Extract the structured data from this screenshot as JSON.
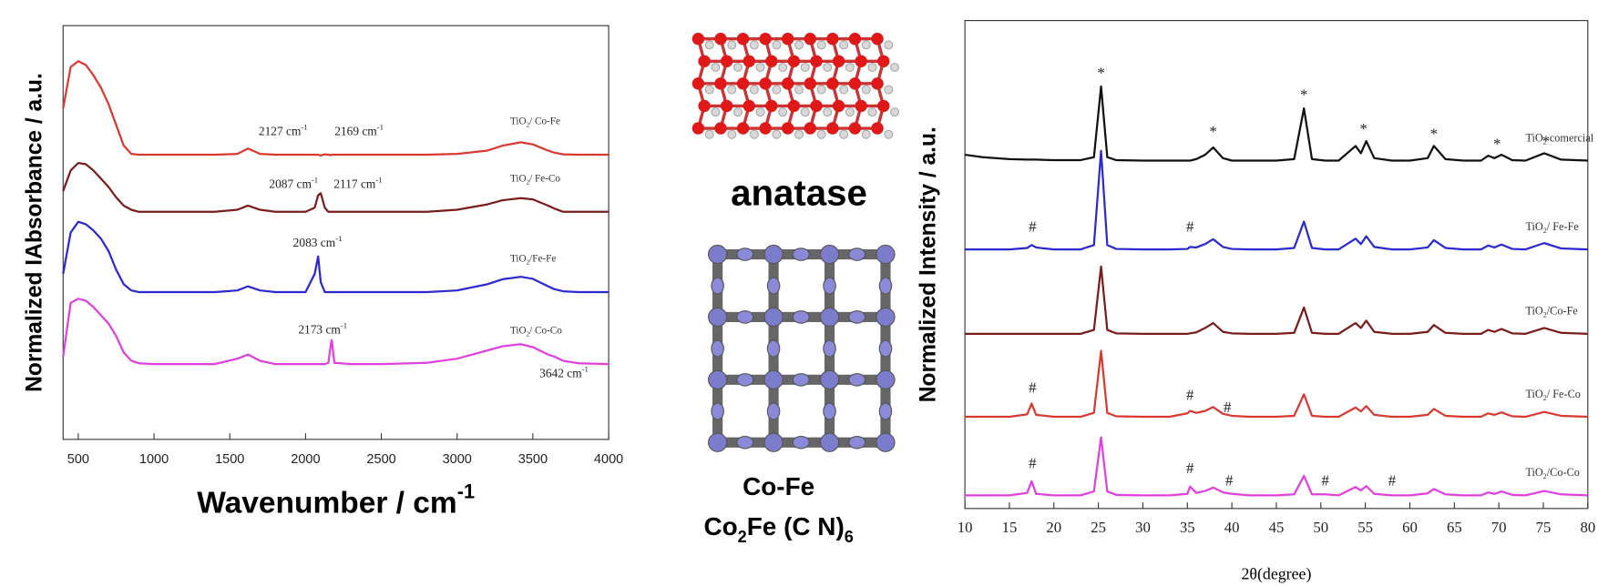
{
  "chart_data": [
    {
      "type": "line",
      "ylabel": "Normalized IAbsorbance / a.u.",
      "xlabel": "Wavenumber / cm-1",
      "xlim": [
        400,
        4000
      ],
      "xticks": [
        500,
        1000,
        1500,
        2000,
        2500,
        3000,
        3500,
        4000
      ],
      "ylim": [
        0,
        100
      ],
      "x": [
        400,
        450,
        500,
        550,
        600,
        650,
        700,
        750,
        800,
        850,
        900,
        1000,
        1200,
        1400,
        1550,
        1620,
        1700,
        1800,
        2000,
        2060,
        2083,
        2100,
        2127,
        2150,
        2169,
        2173,
        2190,
        2300,
        2500,
        2800,
        3000,
        3200,
        3300,
        3420,
        3500,
        3600,
        3642,
        3700,
        3800,
        4000
      ],
      "series": [
        {
          "name": "TiO2/ Co-Fe",
          "color": "#d93a30",
          "values": [
            80,
            90,
            91.4,
            90.5,
            88,
            85,
            81,
            76,
            71,
            69,
            68.8,
            68.8,
            68.8,
            68.8,
            69,
            70.3,
            69,
            68.8,
            68.8,
            68.8,
            68.8,
            68.6,
            68.9,
            68.8,
            68.7,
            68.8,
            68.8,
            68.8,
            68.8,
            68.8,
            69,
            69.8,
            71,
            71.8,
            71.3,
            69.8,
            69.3,
            68.9,
            68.8,
            68.8
          ]
        },
        {
          "name": "TiO2/ Fe-Co",
          "color": "#7a1c1c",
          "values": [
            60,
            65,
            66.8,
            66.5,
            65,
            63,
            61,
            58.5,
            56.5,
            55.5,
            55,
            55,
            55,
            55,
            55.5,
            56.5,
            55.5,
            55,
            55,
            56,
            59,
            59.5,
            56,
            55,
            55,
            55,
            55,
            55,
            55,
            55,
            55.5,
            56.8,
            57.8,
            58.3,
            58,
            56.5,
            55.8,
            55,
            55,
            55
          ]
        },
        {
          "name": "TiO2/Fe-Fe",
          "color": "#2a2ad0",
          "values": [
            40,
            50,
            52.6,
            52,
            50.5,
            48.5,
            45.5,
            41,
            37.5,
            36,
            35.6,
            35.6,
            35.6,
            35.6,
            36,
            37,
            36,
            35.6,
            35.6,
            40,
            44.2,
            38,
            35.6,
            35.6,
            35.6,
            35.6,
            35.6,
            35.6,
            35.6,
            35.6,
            36,
            37.5,
            38.7,
            39.3,
            38.8,
            37,
            36.3,
            35.8,
            35.6,
            35.6
          ]
        },
        {
          "name": "TiO2/ Co-Co",
          "color": "#e040e0",
          "values": [
            20,
            33,
            34,
            33.5,
            32,
            30,
            28,
            25,
            21,
            19,
            18.4,
            18.2,
            18.2,
            18.2,
            19.5,
            20.5,
            19,
            18.2,
            18.2,
            18.2,
            18.2,
            18.2,
            18.2,
            18.5,
            23.5,
            24,
            18.5,
            18.2,
            18.2,
            18.5,
            19.5,
            21.5,
            22.5,
            23,
            22.3,
            20.5,
            20,
            19,
            18.4,
            18.2
          ]
        }
      ],
      "annotations": [
        {
          "text": "2127 cm-1",
          "x": 1852,
          "y": 74.2
        },
        {
          "text": "2169 cm-1",
          "x": 2353,
          "y": 74.2
        },
        {
          "text": "2087 cm-1",
          "x": 1921,
          "y": 61.4
        },
        {
          "text": "2117 cm-1",
          "x": 2346,
          "y": 61.4
        },
        {
          "text": "2083 cm-1",
          "x": 2079,
          "y": 47.2
        },
        {
          "text": "2173 cm-1",
          "x": 2113,
          "y": 26.3
        },
        {
          "text": "3642 cm-1",
          "x": 3705,
          "y": 15.7
        }
      ]
    },
    {
      "type": "line",
      "ylabel": "Normalized Intensity / a.u.",
      "xlabel": "2θ(degree)",
      "xlim": [
        10,
        80
      ],
      "xticks": [
        10,
        15,
        20,
        25,
        30,
        35,
        40,
        45,
        50,
        55,
        60,
        65,
        70,
        75,
        80
      ],
      "ylim": [
        0,
        100
      ],
      "x": [
        10,
        12,
        15,
        17,
        17.5,
        18,
        20,
        23,
        24.5,
        25.3,
        26,
        27,
        30,
        33,
        35,
        35.3,
        36,
        37,
        37.9,
        39,
        40,
        42,
        45,
        47,
        48.1,
        49,
        50.5,
        52,
        53.9,
        54.5,
        55.1,
        56,
        58,
        60,
        62,
        62.7,
        64,
        66,
        68,
        68.8,
        69.5,
        70.3,
        71.5,
        73,
        75.1,
        77,
        80
      ],
      "series": [
        {
          "name": "TiO2 comercial",
          "color": "#111111",
          "values": [
            72.5,
            72,
            71.6,
            71.5,
            71.5,
            71.5,
            71.4,
            71.4,
            72,
            86.5,
            72,
            71.4,
            71.3,
            71.3,
            71.3,
            71.3,
            71.6,
            72.5,
            74,
            71.8,
            71.3,
            71.3,
            71.3,
            71.6,
            82,
            71.6,
            71.3,
            71.3,
            74.3,
            72.8,
            75.3,
            71.8,
            71.3,
            71.3,
            71.8,
            74.3,
            71.6,
            71.3,
            71.3,
            72.3,
            71.8,
            72.5,
            71.4,
            71.3,
            72.8,
            71.5,
            71.3
          ]
        },
        {
          "name": "TiO2/ Fe-Fe",
          "color": "#2a2ad0",
          "values": [
            53.1,
            53.1,
            53.1,
            53.4,
            54,
            53.5,
            53.1,
            53.1,
            54,
            73.3,
            54,
            53.2,
            53.1,
            53.1,
            53.2,
            53.6,
            53.5,
            54.2,
            55.2,
            53.6,
            53.2,
            53.1,
            53.1,
            53.4,
            58.8,
            53.4,
            53.1,
            53.1,
            55.3,
            54.2,
            55.8,
            53.6,
            53.1,
            53.1,
            53.5,
            55,
            53.4,
            53.1,
            53.1,
            53.9,
            53.5,
            54.1,
            53.2,
            53.1,
            54.4,
            53.3,
            53.1
          ]
        },
        {
          "name": "TiO2/Co-Fe",
          "color": "#7a1c1c",
          "values": [
            35.8,
            35.8,
            35.8,
            35.8,
            35.8,
            35.8,
            35.8,
            35.8,
            36.6,
            49.6,
            36.6,
            35.9,
            35.8,
            35.8,
            35.8,
            35.9,
            36.1,
            37,
            38,
            36.2,
            35.9,
            35.8,
            35.8,
            36,
            41.2,
            36,
            35.8,
            35.8,
            38,
            37,
            38.5,
            36.2,
            35.8,
            35.8,
            36.2,
            37.6,
            36,
            35.8,
            35.8,
            36.6,
            36.2,
            36.8,
            35.9,
            35.8,
            37,
            36,
            35.8
          ]
        },
        {
          "name": "TiO2/ Fe-Co",
          "color": "#d93a30",
          "values": [
            18.8,
            18.8,
            18.8,
            19.3,
            21.5,
            19.2,
            18.8,
            18.8,
            19.6,
            32.3,
            19.6,
            18.9,
            18.8,
            18.8,
            19.5,
            20,
            19.6,
            20,
            20.8,
            19.4,
            19,
            18.8,
            18.8,
            19,
            23.4,
            19,
            18.8,
            18.8,
            20.7,
            19.9,
            21,
            19.2,
            18.8,
            18.8,
            19.2,
            20.4,
            19,
            18.8,
            18.8,
            19.5,
            19.2,
            19.7,
            18.9,
            18.8,
            19.8,
            19,
            18.8
          ]
        },
        {
          "name": "TiO2/Co-Co",
          "color": "#e040e0",
          "values": [
            2.7,
            2.7,
            2.7,
            3.2,
            5.6,
            3,
            2.7,
            2.7,
            3.5,
            14.6,
            3.5,
            2.8,
            2.7,
            2.7,
            3,
            4.5,
            3.2,
            3.6,
            4.3,
            3.3,
            3,
            2.7,
            2.7,
            2.9,
            6.7,
            2.9,
            2.9,
            2.7,
            4.4,
            3.7,
            4.6,
            3,
            2.7,
            2.7,
            3.1,
            4,
            2.9,
            2.7,
            2.7,
            3.3,
            3,
            3.5,
            2.8,
            2.7,
            3.6,
            2.9,
            2.7
          ]
        }
      ],
      "annotations": [
        {
          "text": "*",
          "x": 25.3,
          "y": 89
        },
        {
          "text": "*",
          "x": 37.9,
          "y": 77
        },
        {
          "text": "*",
          "x": 48.1,
          "y": 84.5
        },
        {
          "text": "*",
          "x": 54.8,
          "y": 77.5
        },
        {
          "text": "*",
          "x": 62.7,
          "y": 76.5
        },
        {
          "text": "*",
          "x": 69.8,
          "y": 74.5
        },
        {
          "text": "*",
          "x": 75.3,
          "y": 75
        },
        {
          "text": "#",
          "x": 17.6,
          "y": 57.5
        },
        {
          "text": "#",
          "x": 35.3,
          "y": 57.5
        },
        {
          "text": "#",
          "x": 17.6,
          "y": 24.5
        },
        {
          "text": "#",
          "x": 35.3,
          "y": 23
        },
        {
          "text": "#",
          "x": 39.5,
          "y": 20.5
        },
        {
          "text": "#",
          "x": 17.6,
          "y": 9
        },
        {
          "text": "#",
          "x": 35.3,
          "y": 8
        },
        {
          "text": "#",
          "x": 39.7,
          "y": 5.5
        },
        {
          "text": "#",
          "x": 50.5,
          "y": 5.5
        },
        {
          "text": "#",
          "x": 58,
          "y": 5.5
        }
      ]
    }
  ],
  "figure": {
    "anatase_label": "anatase",
    "cofe_label": "Co-Fe",
    "cofe_formula": "Co2Fe (C N)6"
  }
}
